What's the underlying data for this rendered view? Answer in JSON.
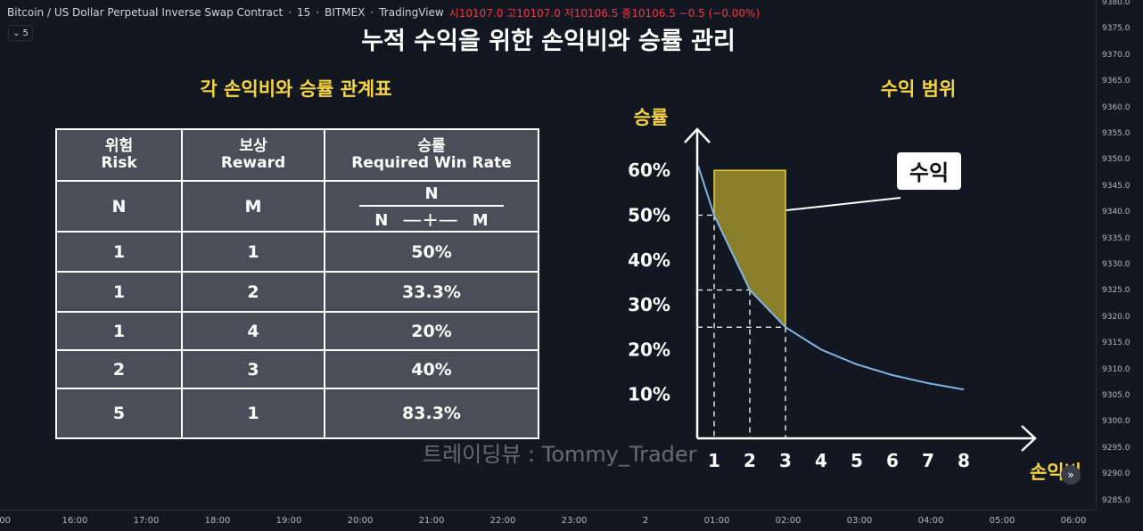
{
  "header": {
    "symbol": "Bitcoin / US Dollar Perpetual Inverse Swap Contract",
    "interval": "15",
    "exchange": "BITMEX",
    "source": "TradingView",
    "ohlc": "시10107.0 고10107.0 저10106.5 종10106.5 −0.5 (−0.00%)",
    "collapse_count": "5"
  },
  "main_title": "누적 수익을 위한 손익비와 승률 관리",
  "table": {
    "title": "각 손익비와 승률 관계표",
    "headers": [
      {
        "ko": "위험",
        "en": "Risk"
      },
      {
        "ko": "보상",
        "en": "Reward"
      },
      {
        "ko": "승률",
        "en": "Required Win Rate"
      }
    ],
    "formula": {
      "risk": "N",
      "reward": "M",
      "numerator": "N",
      "den_left": "N",
      "den_right": "M"
    },
    "rows": [
      [
        "1",
        "1",
        "50%"
      ],
      [
        "1",
        "2",
        "33.3%"
      ],
      [
        "1",
        "4",
        "20%"
      ],
      [
        "2",
        "3",
        "40%"
      ],
      [
        "5",
        "1",
        "83.3%"
      ]
    ]
  },
  "chart_data": {
    "type": "line",
    "title": "수익 범위",
    "xlabel": "손익비",
    "ylabel": "승률",
    "x_ticks": [
      "1",
      "2",
      "3",
      "4",
      "5",
      "6",
      "7",
      "8"
    ],
    "y_ticks": [
      "10%",
      "20%",
      "30%",
      "40%",
      "50%",
      "60%"
    ],
    "series": [
      {
        "name": "",
        "x": [
          0.55,
          1,
          2,
          3,
          4,
          5,
          6,
          7,
          8
        ],
        "y": [
          61,
          50,
          33.3,
          25,
          20,
          16.7,
          14.3,
          12.5,
          11.1
        ]
      }
    ],
    "profit_area": {
      "x_start": 1,
      "x_end": 3,
      "y_top": 60
    },
    "annotation": "수익",
    "colors": {
      "curve": "#7fb6e6",
      "area": "#8a7d2c",
      "area_edge": "#e8cf3a"
    }
  },
  "price_axis": [
    "9380.0",
    "9375.0",
    "9370.0",
    "9365.0",
    "9360.0",
    "9355.0",
    "9350.0",
    "9345.0",
    "9340.0",
    "9335.0",
    "9330.0",
    "9325.0",
    "9320.0",
    "9315.0",
    "9310.0",
    "9305.0",
    "9300.0",
    "9295.0",
    "9290.0",
    "9285.0"
  ],
  "time_axis": [
    ":00",
    "16:00",
    "17:00",
    "18:00",
    "19:00",
    "20:00",
    "21:00",
    "22:00",
    "23:00",
    "2",
    "01:00",
    "02:00",
    "03:00",
    "04:00",
    "05:00",
    "06:00"
  ],
  "watermark": "트레이딩뷰 : Tommy_Trader"
}
